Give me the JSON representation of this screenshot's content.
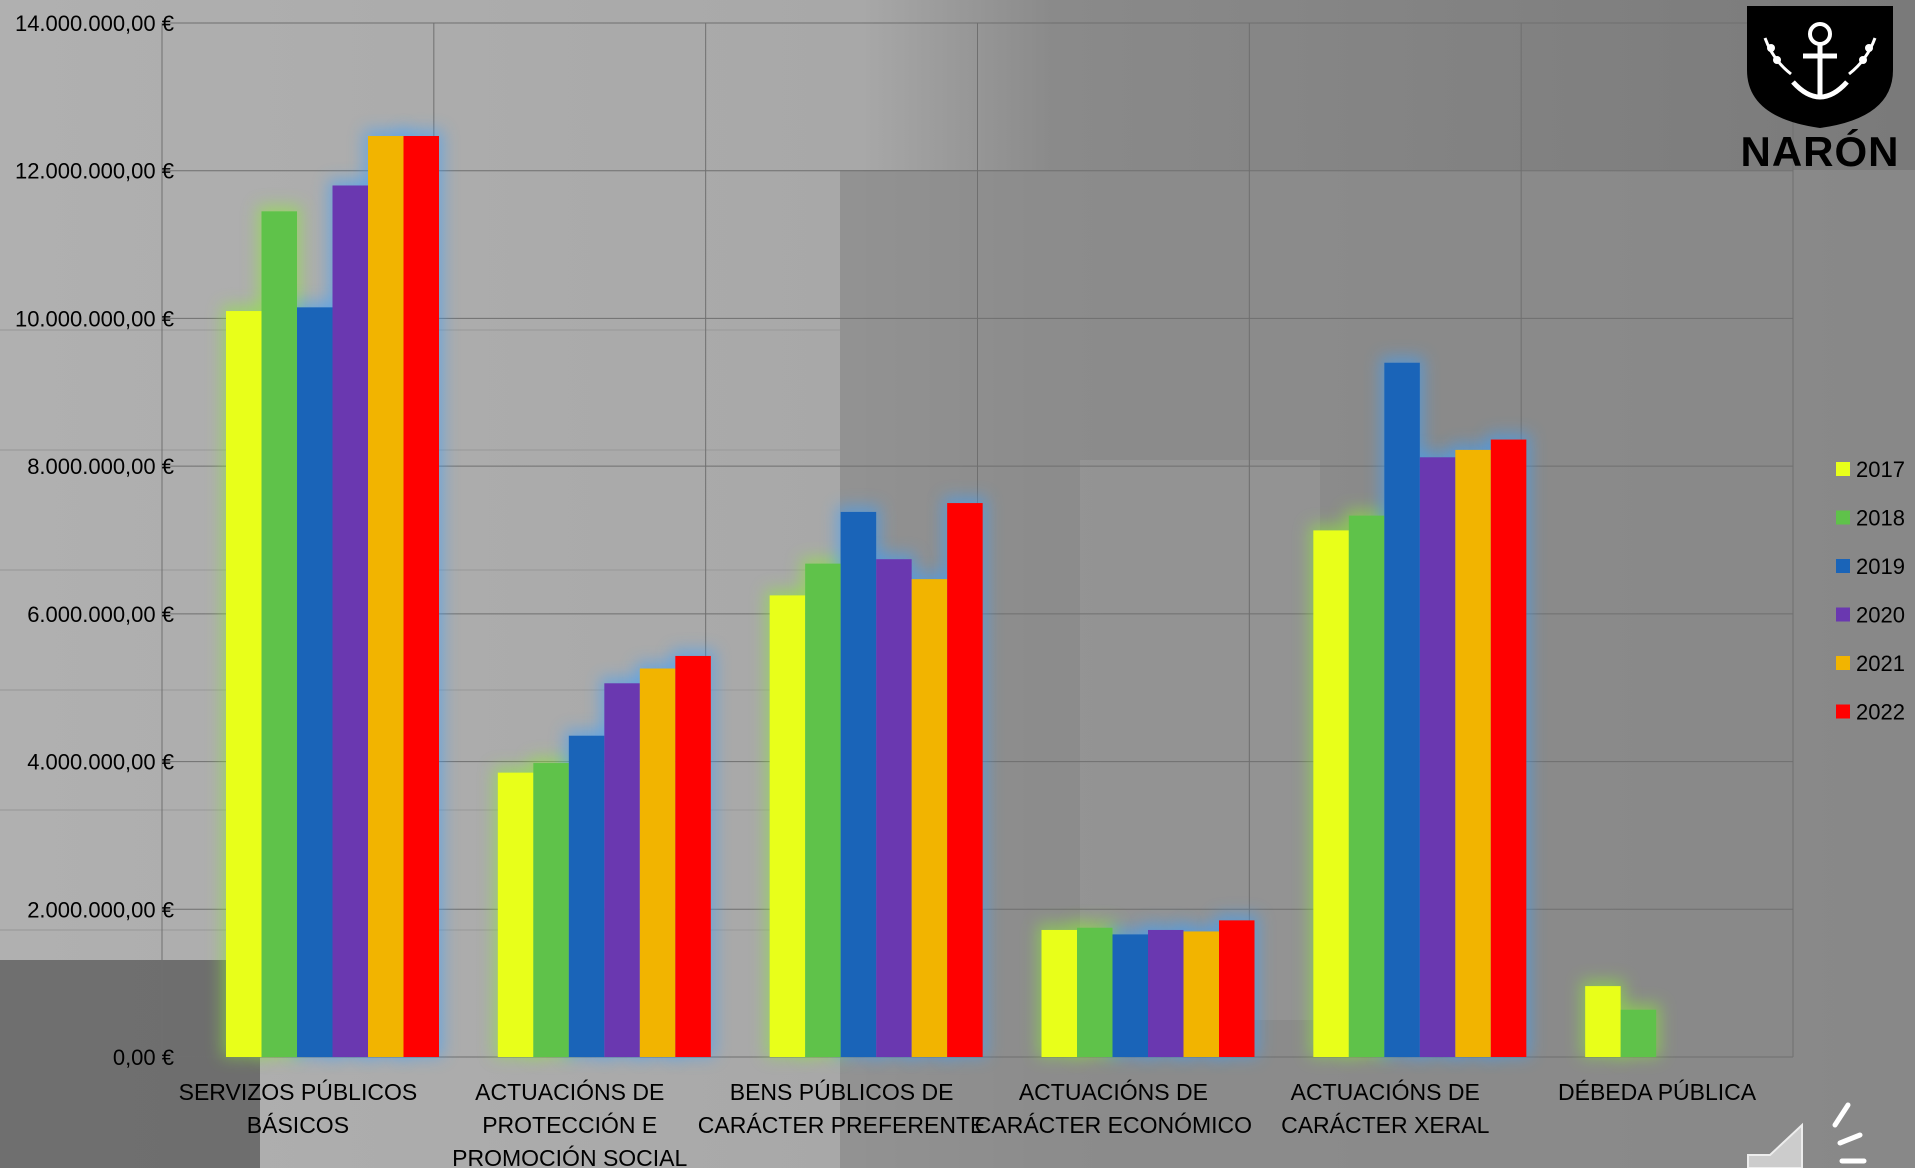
{
  "logo": {
    "text": "NARÓN",
    "icon": "anchor-shield-icon"
  },
  "speaker_icon": "speaker-icon",
  "chart_data": {
    "type": "bar",
    "title": "",
    "xlabel": "",
    "ylabel": "",
    "ylim": [
      0,
      14000000
    ],
    "yticks": [
      "0,00 €",
      "2.000.000,00 €",
      "4.000.000,00 €",
      "6.000.000,00 €",
      "8.000.000,00 €",
      "10.000.000,00 €",
      "12.000.000,00 €",
      "14.000.000,00 €"
    ],
    "ytick_values": [
      0,
      2000000,
      4000000,
      6000000,
      8000000,
      10000000,
      12000000,
      14000000
    ],
    "grid": true,
    "legend_position": "right",
    "categories": [
      [
        "SERVIZOS PÚBLICOS",
        "BÁSICOS"
      ],
      [
        "ACTUACIÓNS DE",
        "PROTECCIÓN E",
        "PROMOCIÓN SOCIAL"
      ],
      [
        "BENS PÚBLICOS DE",
        "CARÁCTER PREFERENTE"
      ],
      [
        "ACTUACIÓNS DE",
        "CARÁCTER ECONÓMICO"
      ],
      [
        "ACTUACIÓNS DE",
        "CARÁCTER XERAL"
      ],
      [
        "DÉBEDA PÚBLICA"
      ]
    ],
    "series": [
      {
        "name": "2017",
        "color": "#e8ff1a",
        "values": [
          10100000,
          3850000,
          6250000,
          1720000,
          7130000,
          960000
        ]
      },
      {
        "name": "2018",
        "color": "#5fc24a",
        "values": [
          11450000,
          3980000,
          6680000,
          1750000,
          7330000,
          640000
        ]
      },
      {
        "name": "2019",
        "color": "#1a64b8",
        "values": [
          10150000,
          4350000,
          7380000,
          1660000,
          9400000,
          0
        ]
      },
      {
        "name": "2020",
        "color": "#6a38b0",
        "values": [
          11800000,
          5060000,
          6740000,
          1720000,
          8120000,
          0
        ]
      },
      {
        "name": "2021",
        "color": "#f2b400",
        "values": [
          12470000,
          5260000,
          6470000,
          1700000,
          8220000,
          0
        ]
      },
      {
        "name": "2022",
        "color": "#ff0000",
        "values": [
          12470000,
          5430000,
          7500000,
          1850000,
          8360000,
          0
        ]
      }
    ]
  }
}
